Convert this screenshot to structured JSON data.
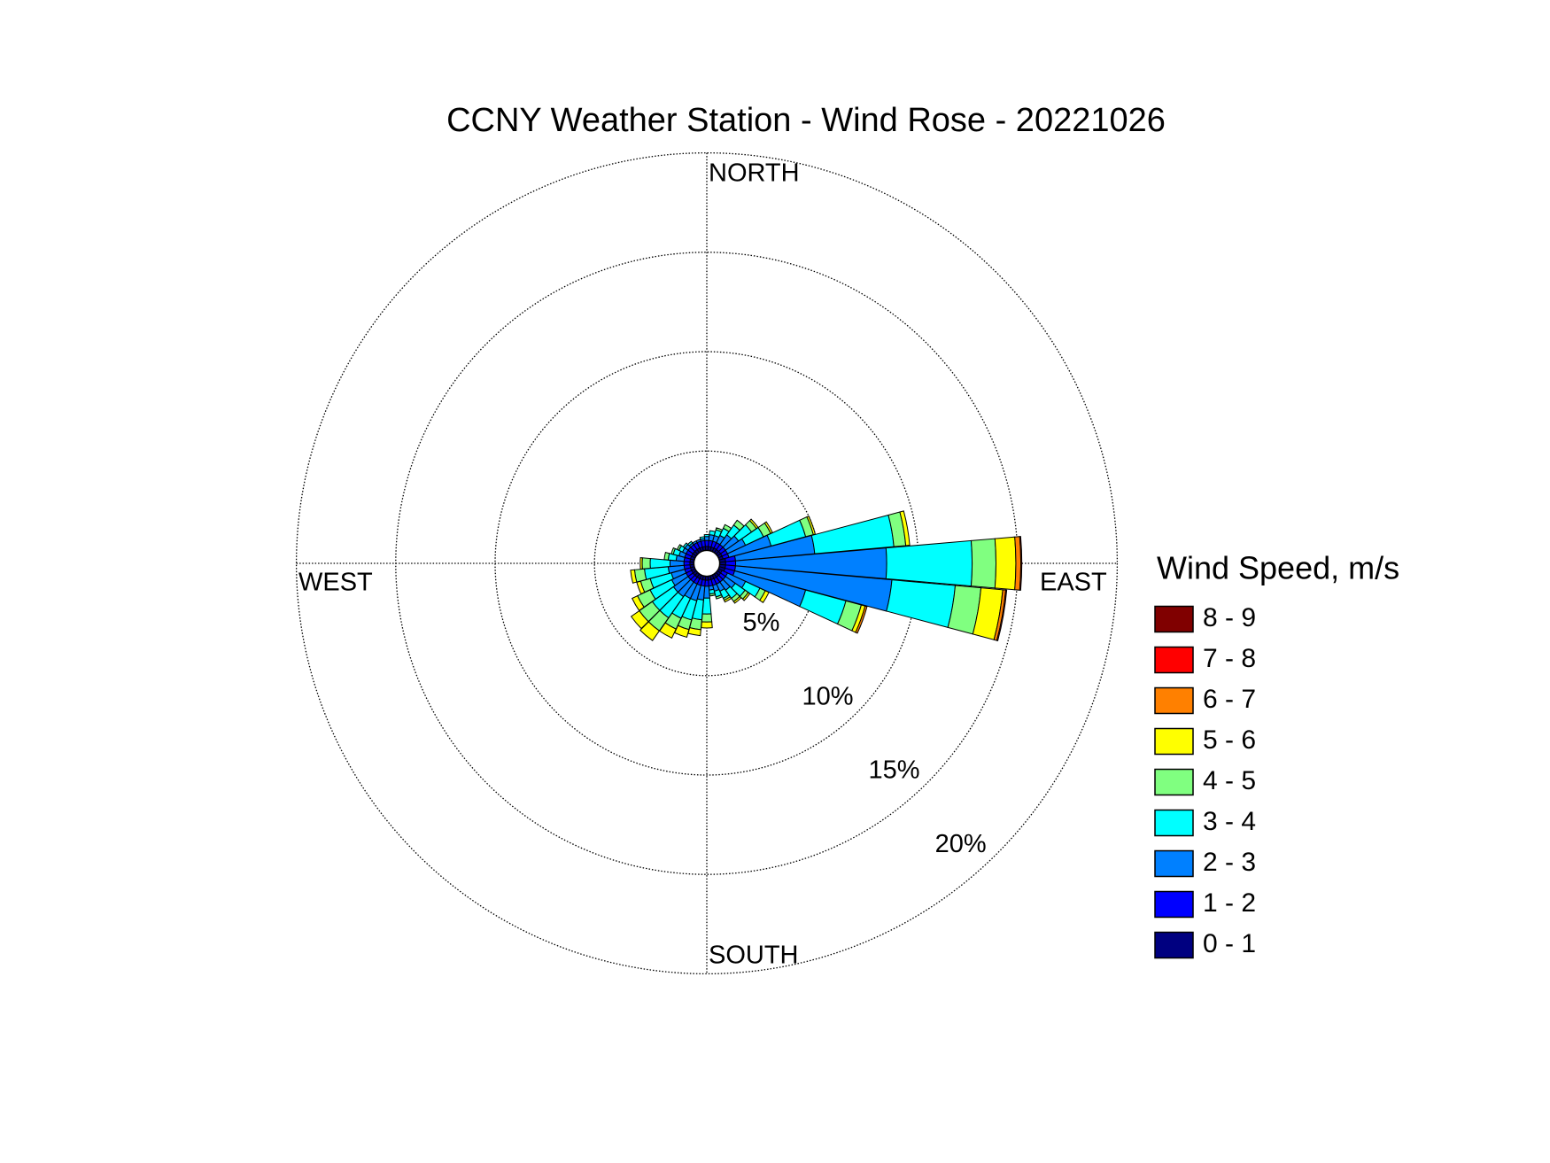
{
  "chart_data": {
    "type": "windrose",
    "title": "CCNY Weather Station - Wind Rose - 20221026",
    "direction_labels": {
      "north": "NORTH",
      "east": "EAST",
      "south": "SOUTH",
      "west": "WEST"
    },
    "legend_title": "Wind Speed, m/s",
    "x": [
      0,
      10,
      20,
      30,
      40,
      50,
      60,
      70,
      80,
      90,
      100,
      110,
      120,
      130,
      140,
      150,
      160,
      170,
      180,
      190,
      200,
      210,
      220,
      230,
      240,
      250,
      260,
      270,
      280,
      290,
      300,
      310,
      320,
      330,
      340,
      350
    ],
    "rlim": [
      0,
      20
    ],
    "rticks": [
      {
        "value": 5,
        "label": "5%"
      },
      {
        "value": 10,
        "label": "10%"
      },
      {
        "value": 15,
        "label": "15%"
      },
      {
        "value": 20,
        "label": "20%"
      }
    ],
    "grid": true,
    "series": [
      {
        "name": "0 - 1",
        "color": "#000080",
        "values": [
          0.2,
          0.2,
          0.2,
          0.2,
          0.2,
          0.2,
          0.2,
          0.2,
          0.3,
          0.3,
          0.3,
          0.3,
          0.2,
          0.2,
          0.2,
          0.2,
          0.2,
          0.2,
          0.2,
          0.2,
          0.2,
          0.2,
          0.2,
          0.2,
          0.2,
          0.2,
          0.2,
          0.2,
          0.2,
          0.2,
          0.2,
          0.2,
          0.2,
          0.2,
          0.2,
          0.2
        ]
      },
      {
        "name": "1 - 2",
        "color": "#0000ff",
        "values": [
          0.3,
          0.3,
          0.3,
          0.3,
          0.3,
          0.3,
          0.3,
          0.3,
          0.5,
          0.5,
          0.5,
          0.5,
          0.3,
          0.3,
          0.3,
          0.3,
          0.3,
          0.3,
          0.3,
          0.3,
          0.3,
          0.3,
          0.3,
          0.3,
          0.3,
          0.3,
          0.3,
          0.3,
          0.3,
          0.3,
          0.3,
          0.3,
          0.3,
          0.3,
          0.3,
          0.3
        ]
      },
      {
        "name": "2 - 3",
        "color": "#0080ff",
        "values": [
          0.2,
          0.3,
          0.3,
          0.4,
          0.6,
          0.8,
          1.0,
          2.2,
          4.0,
          7.6,
          7.9,
          3.7,
          1.0,
          0.6,
          0.5,
          0.4,
          0.3,
          0.2,
          0.6,
          0.7,
          0.8,
          0.8,
          0.9,
          0.9,
          0.8,
          0.7,
          0.8,
          0.7,
          0.4,
          0.3,
          0.2,
          0.2,
          0.1,
          0.1,
          0.1,
          0.1
        ]
      },
      {
        "name": "3 - 4",
        "color": "#00ffff",
        "values": [
          0.1,
          0.2,
          0.3,
          0.4,
          0.6,
          0.8,
          1.0,
          1.8,
          4.0,
          4.3,
          3.2,
          2.1,
          0.8,
          0.6,
          0.5,
          0.4,
          0.3,
          0.2,
          0.8,
          1.0,
          1.0,
          1.1,
          1.3,
          1.3,
          1.2,
          1.1,
          1.2,
          1.0,
          0.4,
          0.3,
          0.2,
          0.1,
          0.1,
          0,
          0,
          0.1
        ]
      },
      {
        "name": "4 - 5",
        "color": "#80ff80",
        "values": [
          0,
          0,
          0.1,
          0.2,
          0.3,
          0.3,
          0.4,
          0.4,
          0.6,
          1.2,
          1.3,
          0.8,
          0.3,
          0.2,
          0.2,
          0.1,
          0.1,
          0.1,
          0.4,
          0.5,
          0.5,
          0.6,
          0.8,
          0.8,
          0.7,
          0.5,
          0.5,
          0.4,
          0.2,
          0.1,
          0.1,
          0,
          0,
          0,
          0,
          0
        ]
      },
      {
        "name": "5 - 6",
        "color": "#ffff00",
        "values": [
          0,
          0,
          0,
          0,
          0,
          0.1,
          0.1,
          0.1,
          0.2,
          1.0,
          1.1,
          0.2,
          0.2,
          0.1,
          0.1,
          0.1,
          0,
          0,
          0.3,
          0.3,
          0.4,
          0.5,
          0.6,
          0.5,
          0.3,
          0.2,
          0.2,
          0.1,
          0,
          0,
          0,
          0,
          0,
          0,
          0,
          0
        ]
      },
      {
        "name": "6 - 7",
        "color": "#ff8000",
        "values": [
          0,
          0,
          0,
          0,
          0,
          0,
          0,
          0,
          0,
          0.25,
          0.15,
          0.1,
          0,
          0,
          0,
          0,
          0,
          0,
          0,
          0,
          0,
          0,
          0,
          0,
          0,
          0,
          0,
          0,
          0,
          0,
          0,
          0,
          0,
          0,
          0,
          0
        ]
      },
      {
        "name": "7 - 8",
        "color": "#ff0000",
        "values": [
          0,
          0,
          0,
          0,
          0,
          0,
          0,
          0,
          0,
          0.05,
          0.05,
          0,
          0,
          0,
          0,
          0,
          0,
          0,
          0,
          0,
          0,
          0,
          0,
          0,
          0,
          0,
          0,
          0,
          0,
          0,
          0,
          0,
          0,
          0,
          0,
          0
        ]
      },
      {
        "name": "8 - 9",
        "color": "#800000",
        "values": [
          0,
          0,
          0,
          0,
          0,
          0,
          0,
          0,
          0,
          0,
          0,
          0,
          0,
          0,
          0,
          0,
          0,
          0,
          0,
          0,
          0,
          0,
          0,
          0,
          0,
          0,
          0,
          0,
          0,
          0,
          0,
          0,
          0,
          0,
          0,
          0
        ]
      }
    ]
  }
}
